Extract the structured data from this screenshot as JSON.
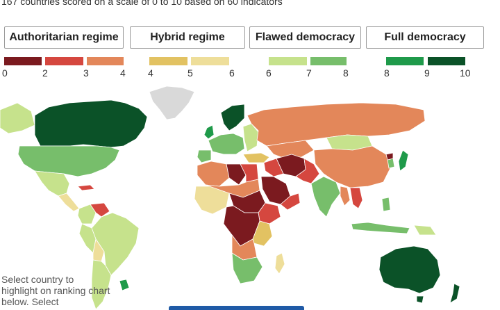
{
  "subtitle": "167 countries scored on a scale of 0 to 10 based on 60 indicators",
  "categories": [
    {
      "label": "Authoritarian regime"
    },
    {
      "label": "Hybrid regime"
    },
    {
      "label": "Flawed democracy"
    },
    {
      "label": "Full democracy"
    }
  ],
  "scale": {
    "colors": [
      "#7b1a1f",
      "#d5473f",
      "#e3875a",
      "#e2c262",
      "#eede9a",
      "#c6e28c",
      "#77be6b",
      "#1f9a4a",
      "#0b5228"
    ],
    "ticks": [
      "0",
      "2",
      "3",
      "4",
      "4",
      "5",
      "6",
      "6",
      "7",
      "8",
      "8",
      "9",
      "10"
    ]
  },
  "hint": "Select country to highlight on ranking chart below. Select",
  "map_colors": {
    "ocean": "#ffffff",
    "no_data": "#d9d9d9",
    "border": "#ffffff"
  }
}
